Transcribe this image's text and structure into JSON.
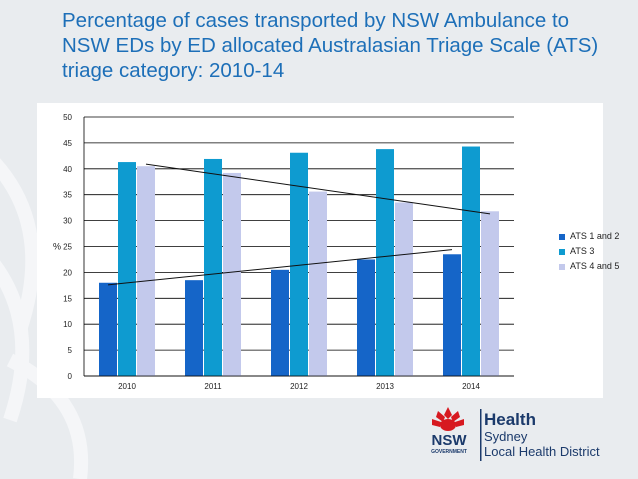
{
  "title": "Percentage of cases transported by NSW Ambulance to NSW EDs by ED allocated Australasian Triage Scale (ATS) triage category: 2010-14",
  "colors": {
    "title": "#1d6fb8",
    "ats12": "#1565c8",
    "ats3": "#0e9bd0",
    "ats45": "#c3c9ec",
    "trend": "#111111"
  },
  "chart_data": {
    "type": "bar",
    "categories": [
      "2010",
      "2011",
      "2012",
      "2013",
      "2014"
    ],
    "series": [
      {
        "name": "ATS 1 and 2",
        "values": [
          18,
          18.5,
          20.5,
          22.5,
          23.5
        ]
      },
      {
        "name": "ATS 3",
        "values": [
          41.3,
          41.9,
          43.1,
          43.8,
          44.3
        ]
      },
      {
        "name": "ATS 4 and 5",
        "values": [
          40.5,
          39.2,
          35.6,
          33.5,
          31.8
        ]
      }
    ],
    "trendlines": [
      {
        "series": "ATS 1 and 2",
        "from": 17.6,
        "to": 24.4
      },
      {
        "series": "ATS 4 and 5",
        "from": 40.9,
        "to": 31.3
      }
    ],
    "ylabel": "%",
    "xlabel": "",
    "ylim": [
      0,
      50
    ],
    "yticks": [
      "0",
      "5",
      "10",
      "15",
      "20",
      "25",
      "30",
      "35",
      "40",
      "45",
      "50"
    ],
    "grid": true,
    "legend_position": "right"
  },
  "logo": {
    "emblem_text": "NSW",
    "emblem_subtext": "GOVERNMENT",
    "org": "Health",
    "sub1": "Sydney",
    "sub2": "Local Health District"
  }
}
